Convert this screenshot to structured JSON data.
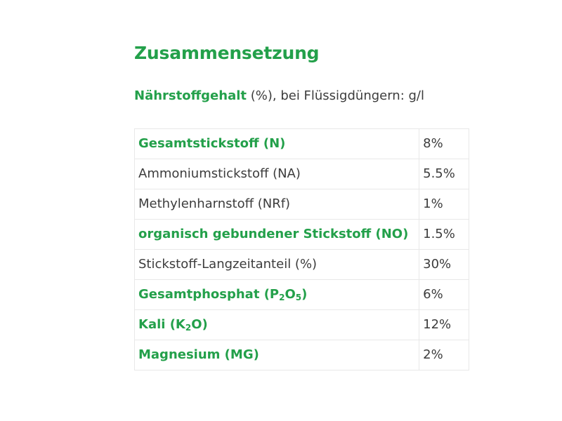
{
  "heading": "Zusammensetzung",
  "intro": {
    "bold": "Nährstoffgehalt",
    "rest": " (%), bei Flüssigdüngern: g/l"
  },
  "rows": [
    {
      "name": "Gesamtstickstoff (N)",
      "value": "8%"
    },
    {
      "name": "Ammoniumstickstoff (NA)",
      "value": "5.5%"
    },
    {
      "name": "Methylenharnstoff (NRf)",
      "value": "1%"
    },
    {
      "name": "organisch gebundener Stickstoff (NO)",
      "value": "1.5%"
    },
    {
      "name": "Stickstoff-Langzeitanteil (%)",
      "value": "30%"
    },
    {
      "name_parts": [
        "Gesamtphosphat (P",
        "2",
        "O",
        "5",
        ")"
      ],
      "value": "6%"
    },
    {
      "name_parts": [
        "Kali (K",
        "2",
        "O)"
      ],
      "value": "12%"
    },
    {
      "name": "Magnesium (MG)",
      "value": "2%"
    }
  ],
  "colors": {
    "accent": "#23a04a",
    "text": "#3c3c3c",
    "border": "#e8e8e8"
  }
}
